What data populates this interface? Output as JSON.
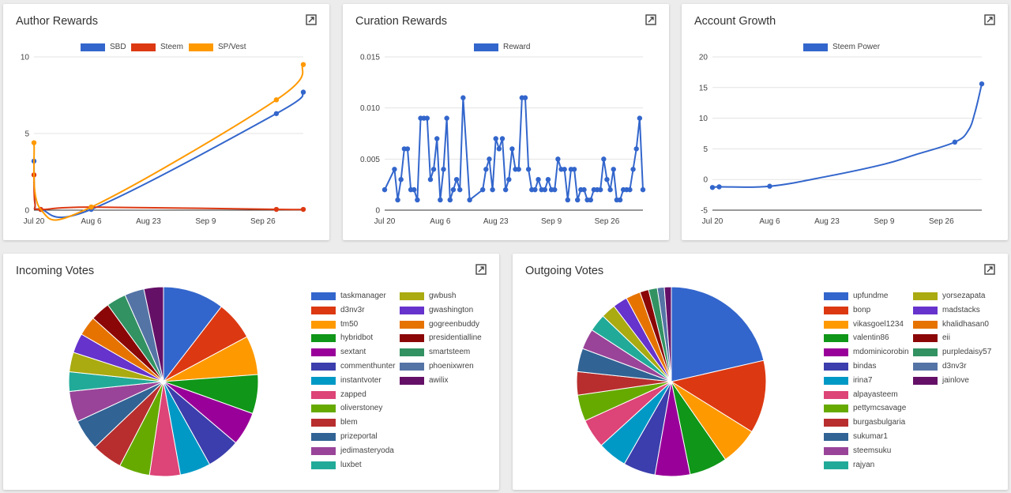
{
  "icons": {
    "expand": "expand-icon"
  },
  "cards": {
    "author": {
      "title": "Author Rewards"
    },
    "curation": {
      "title": "Curation Rewards"
    },
    "growth": {
      "title": "Account Growth"
    },
    "incoming": {
      "title": "Incoming Votes"
    },
    "outgoing": {
      "title": "Outgoing Votes"
    }
  },
  "chart_data": [
    {
      "id": "author",
      "type": "line",
      "title": "Author Rewards",
      "x_ticks": [
        "Jul 20",
        "Aug 6",
        "Aug 23",
        "Sep 9",
        "Sep 26"
      ],
      "x_tick_pos": [
        0,
        17,
        34,
        51,
        68
      ],
      "xlim": [
        0,
        80
      ],
      "ylim": [
        0,
        10
      ],
      "y_ticks": [
        0,
        5,
        10
      ],
      "legend_position": "top",
      "series": [
        {
          "name": "SBD",
          "color": "#3366cc",
          "x": [
            0,
            0.3,
            2,
            17,
            72,
            80
          ],
          "y": [
            3.2,
            0.5,
            0.05,
            0.05,
            6.3,
            7.7
          ]
        },
        {
          "name": "Steem",
          "color": "#dc3912",
          "x": [
            0,
            0.3,
            2,
            17,
            72,
            80
          ],
          "y": [
            2.3,
            0.4,
            0.05,
            0.2,
            0.05,
            0.05
          ]
        },
        {
          "name": "SP/Vest",
          "color": "#ff9900",
          "x": [
            0,
            2,
            17,
            72,
            80
          ],
          "y": [
            4.4,
            0.05,
            0.2,
            7.2,
            9.5
          ]
        }
      ]
    },
    {
      "id": "curation",
      "type": "line",
      "title": "Curation Rewards",
      "x_ticks": [
        "Jul 20",
        "Aug 6",
        "Aug 23",
        "Sep 9",
        "Sep 26"
      ],
      "x_tick_pos": [
        0,
        17,
        34,
        51,
        68
      ],
      "xlim": [
        0,
        79
      ],
      "ylim": [
        0,
        0.015
      ],
      "y_ticks": [
        0,
        0.005,
        0.01,
        0.015
      ],
      "y_tick_labels": [
        "0",
        "0.005",
        "0.010",
        "0.015"
      ],
      "legend_position": "top",
      "series": [
        {
          "name": "Reward",
          "color": "#3366cc",
          "x": [
            0,
            3,
            4,
            5,
            6,
            7,
            8,
            9,
            10,
            11,
            12,
            13,
            14,
            15,
            16,
            17,
            18,
            19,
            20,
            21,
            22,
            23,
            24,
            26,
            30,
            31,
            32,
            33,
            34,
            35,
            36,
            37,
            38,
            39,
            40,
            41,
            42,
            43,
            44,
            45,
            46,
            47,
            48,
            49,
            50,
            51,
            52,
            53,
            54,
            55,
            56,
            57,
            58,
            59,
            60,
            61,
            62,
            63,
            64,
            65,
            66,
            67,
            68,
            69,
            70,
            71,
            72,
            73,
            74,
            75,
            76,
            77,
            78,
            79
          ],
          "y": [
            0.002,
            0.004,
            0.001,
            0.003,
            0.006,
            0.006,
            0.002,
            0.002,
            0.001,
            0.009,
            0.009,
            0.009,
            0.003,
            0.004,
            0.007,
            0.001,
            0.004,
            0.009,
            0.001,
            0.002,
            0.003,
            0.002,
            0.011,
            0.001,
            0.002,
            0.004,
            0.005,
            0.002,
            0.007,
            0.006,
            0.007,
            0.002,
            0.003,
            0.006,
            0.004,
            0.004,
            0.011,
            0.011,
            0.004,
            0.002,
            0.002,
            0.003,
            0.002,
            0.002,
            0.003,
            0.002,
            0.002,
            0.005,
            0.004,
            0.004,
            0.001,
            0.004,
            0.004,
            0.001,
            0.002,
            0.002,
            0.001,
            0.001,
            0.002,
            0.002,
            0.002,
            0.005,
            0.003,
            0.002,
            0.004,
            0.001,
            0.001,
            0.002,
            0.002,
            0.002,
            0.004,
            0.006,
            0.009,
            0.002
          ]
        }
      ]
    },
    {
      "id": "growth",
      "type": "line",
      "title": "Account Growth",
      "x_ticks": [
        "Jul 20",
        "Aug 6",
        "Aug 23",
        "Sep 9",
        "Sep 26"
      ],
      "x_tick_pos": [
        0,
        17,
        34,
        51,
        68
      ],
      "xlim": [
        0,
        80
      ],
      "ylim": [
        -5,
        20
      ],
      "y_ticks": [
        -5,
        0,
        5,
        10,
        15,
        20
      ],
      "legend_position": "top",
      "series": [
        {
          "name": "Steem Power",
          "color": "#3366cc",
          "x": [
            0,
            2,
            17,
            34,
            51,
            60,
            72,
            76,
            78,
            80
          ],
          "y": [
            -1.3,
            -1.2,
            -1.1,
            0.5,
            2.5,
            4.0,
            6.1,
            8.0,
            11.0,
            15.6
          ],
          "markers": [
            0,
            1,
            2,
            6,
            9
          ]
        }
      ]
    },
    {
      "id": "incoming",
      "type": "pie",
      "title": "Incoming Votes",
      "legend_position": "right",
      "slices": [
        {
          "label": "taskmanager",
          "value": 11,
          "color": "#3366cc"
        },
        {
          "label": "d3nv3r",
          "value": 7,
          "color": "#dc3912"
        },
        {
          "label": "tm50",
          "value": 7,
          "color": "#ff9900"
        },
        {
          "label": "hybridbot",
          "value": 7,
          "color": "#109618"
        },
        {
          "label": "sextant",
          "value": 6,
          "color": "#990099"
        },
        {
          "label": "commenthunter",
          "value": 6,
          "color": "#3b3eac"
        },
        {
          "label": "instantvoter",
          "value": 5.5,
          "color": "#0099c6"
        },
        {
          "label": "zapped",
          "value": 5.5,
          "color": "#dd4477"
        },
        {
          "label": "oliverstoney",
          "value": 5.5,
          "color": "#66aa00"
        },
        {
          "label": "blem",
          "value": 5.5,
          "color": "#b82e2e"
        },
        {
          "label": "prizeportal",
          "value": 5.5,
          "color": "#316395"
        },
        {
          "label": "jedimasteryoda",
          "value": 5.5,
          "color": "#994499"
        },
        {
          "label": "luxbet",
          "value": 3.5,
          "color": "#22aa99"
        },
        {
          "label": "gwbush",
          "value": 3.5,
          "color": "#aaaa11"
        },
        {
          "label": "gwashington",
          "value": 3.5,
          "color": "#6633cc"
        },
        {
          "label": "gogreenbuddy",
          "value": 3.5,
          "color": "#e67300"
        },
        {
          "label": "presidentialline",
          "value": 3.5,
          "color": "#8b0707"
        },
        {
          "label": "smartsteem",
          "value": 3.5,
          "color": "#329262"
        },
        {
          "label": "phoenixwren",
          "value": 3.5,
          "color": "#5574a6"
        },
        {
          "label": "awilix",
          "value": 3.5,
          "color": "#651067"
        }
      ]
    },
    {
      "id": "outgoing",
      "type": "pie",
      "title": "Outgoing Votes",
      "legend_position": "right",
      "slices": [
        {
          "label": "upfundme",
          "value": 21.5,
          "color": "#3366cc"
        },
        {
          "label": "bonp",
          "value": 12.5,
          "color": "#dc3912"
        },
        {
          "label": "vikasgoel1234",
          "value": 6.5,
          "color": "#ff9900"
        },
        {
          "label": "valentin86",
          "value": 6.5,
          "color": "#109618"
        },
        {
          "label": "mdominicorobin",
          "value": 6,
          "color": "#990099"
        },
        {
          "label": "bindas",
          "value": 5.5,
          "color": "#3b3eac"
        },
        {
          "label": "irina7",
          "value": 5,
          "color": "#0099c6"
        },
        {
          "label": "alpayasteem",
          "value": 5,
          "color": "#dd4477"
        },
        {
          "label": "pettymcsavage",
          "value": 4.5,
          "color": "#66aa00"
        },
        {
          "label": "burgasbulgaria",
          "value": 4,
          "color": "#b82e2e"
        },
        {
          "label": "sukumar1",
          "value": 4,
          "color": "#316395"
        },
        {
          "label": "steemsuku",
          "value": 3.5,
          "color": "#994499"
        },
        {
          "label": "rajyan",
          "value": 3,
          "color": "#22aa99"
        },
        {
          "label": "yorsezapata",
          "value": 2.5,
          "color": "#aaaa11"
        },
        {
          "label": "madstacks",
          "value": 2.5,
          "color": "#6633cc"
        },
        {
          "label": "khalidhasan0",
          "value": 2.5,
          "color": "#e67300"
        },
        {
          "label": "eii",
          "value": 1.5,
          "color": "#8b0707"
        },
        {
          "label": "purpledaisy57",
          "value": 1.5,
          "color": "#329262"
        },
        {
          "label": "d3nv3r",
          "value": 1.2,
          "color": "#5574a6"
        },
        {
          "label": "jainlove",
          "value": 1.2,
          "color": "#651067"
        }
      ]
    }
  ]
}
